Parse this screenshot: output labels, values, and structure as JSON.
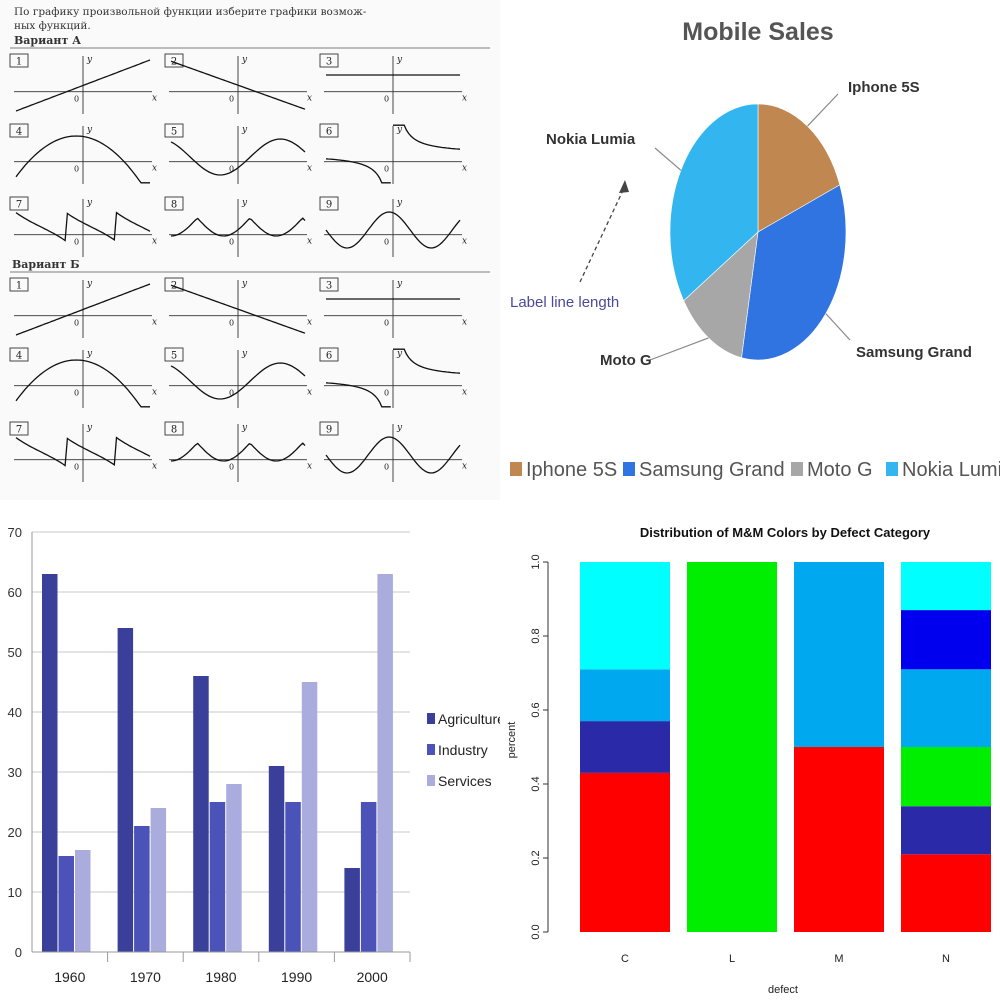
{
  "worksheet": {
    "header_lines": [
      "По графику произвольной функции изберите графики возмож-",
      "ных функций."
    ],
    "variant_a": "Вариант А",
    "variant_b": "Вариант Б",
    "tile_numbers": [
      "1",
      "2",
      "3",
      "4",
      "5",
      "6",
      "7",
      "8",
      "9"
    ],
    "axis_x": "x",
    "axis_y": "y",
    "origin": "0"
  },
  "chart_data": [
    {
      "type": "pie",
      "title": "Mobile Sales",
      "slices": [
        {
          "label": "Iphone 5S",
          "value": 19,
          "color": "#c08850"
        },
        {
          "label": "Samsung Grand",
          "value": 34,
          "color": "#2f74e0"
        },
        {
          "label": "Moto G",
          "value": 13,
          "color": "#a7a7a7"
        },
        {
          "label": "Nokia Lumia",
          "value": 34,
          "color": "#33b6ef"
        }
      ],
      "annotation": "Label line  length",
      "legend_position": "bottom"
    },
    {
      "type": "bar",
      "categories": [
        "1960",
        "1970",
        "1980",
        "1990",
        "2000"
      ],
      "series": [
        {
          "name": "Agriculture",
          "values": [
            63,
            54,
            46,
            31,
            14
          ],
          "color": "#3a3f9a"
        },
        {
          "name": "Industry",
          "values": [
            16,
            21,
            25,
            25,
            25
          ],
          "color": "#4b52b8"
        },
        {
          "name": "Services",
          "values": [
            17,
            24,
            28,
            45,
            63
          ],
          "color": "#a9acdc"
        }
      ],
      "ylim": [
        0,
        70
      ],
      "yticks": [
        "0",
        "10",
        "20",
        "30",
        "40",
        "50",
        "60",
        "70"
      ],
      "grid": true,
      "legend_position": "right"
    },
    {
      "type": "bar",
      "stacked": true,
      "title": "Distribution of M&M Colors by Defect Category",
      "xlabel": "defect",
      "ylabel": "percent",
      "categories": [
        "C",
        "L",
        "M",
        "N"
      ],
      "yticks": [
        "0.0",
        "0.2",
        "0.4",
        "0.6",
        "0.8",
        "1.0"
      ],
      "ylim": [
        0,
        1
      ],
      "stacks": [
        [
          {
            "value": 0.43,
            "color": "#ff0000"
          },
          {
            "value": 0.14,
            "color": "#2a2aa8"
          },
          {
            "value": 0.14,
            "color": "#00a8f0"
          },
          {
            "value": 0.29,
            "color": "#00ffff"
          }
        ],
        [
          {
            "value": 1.0,
            "color": "#00ee00"
          }
        ],
        [
          {
            "value": 0.5,
            "color": "#ff0000"
          },
          {
            "value": 0.5,
            "color": "#00a8f0"
          }
        ],
        [
          {
            "value": 0.21,
            "color": "#ff0000"
          },
          {
            "value": 0.13,
            "color": "#2a2aa8"
          },
          {
            "value": 0.16,
            "color": "#00ee00"
          },
          {
            "value": 0.21,
            "color": "#00a8f0"
          },
          {
            "value": 0.16,
            "color": "#0000ee"
          },
          {
            "value": 0.13,
            "color": "#00ffff"
          }
        ]
      ]
    }
  ]
}
